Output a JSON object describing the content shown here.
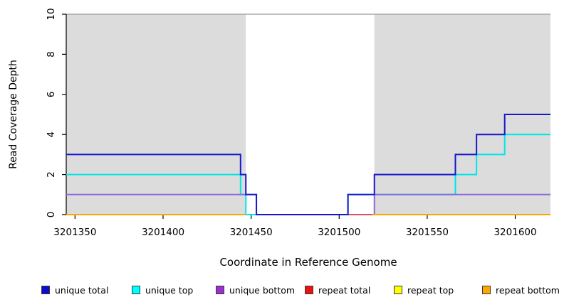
{
  "chart_data": {
    "type": "line",
    "subtype": "step-coverage",
    "title": "",
    "xlabel": "Coordinate in Reference Genome",
    "ylabel": "Read Coverage Depth",
    "xlim": [
      3201345,
      3201620
    ],
    "ylim": [
      0,
      10
    ],
    "x_ticks": [
      3201350,
      3201400,
      3201450,
      3201500,
      3201550,
      3201600
    ],
    "y_ticks": [
      0,
      2,
      4,
      6,
      8,
      10
    ],
    "grid": false,
    "legend_position": "bottom",
    "plot_bg": "#ffffff",
    "top_border_color": "#aaaaaa",
    "axis_color": "#000000",
    "shaded_regions": [
      {
        "x0": 3201345,
        "x1": 3201447,
        "color": "#dcdcdc",
        "meaning": "repeat-region-shading"
      },
      {
        "x0": 3201520,
        "x1": 3201620,
        "color": "#dcdcdc",
        "meaning": "repeat-region-shading"
      }
    ],
    "series": [
      {
        "name": "unique total",
        "color": "#1717cd",
        "legend_color": "#0d0dcd",
        "segments": [
          [
            3201345,
            3201444,
            3
          ],
          [
            3201444,
            3201447,
            2
          ],
          [
            3201447,
            3201453,
            1
          ],
          [
            3201453,
            3201505,
            0
          ],
          [
            3201505,
            3201520,
            1
          ],
          [
            3201520,
            3201566,
            2
          ],
          [
            3201566,
            3201578,
            3
          ],
          [
            3201578,
            3201594,
            4
          ],
          [
            3201594,
            3201620,
            5
          ]
        ]
      },
      {
        "name": "unique top",
        "color": "#00e6e6",
        "legend_color": "#00ffff",
        "segments": [
          [
            3201345,
            3201444,
            2
          ],
          [
            3201444,
            3201447,
            1
          ],
          [
            3201447,
            3201505,
            0
          ],
          [
            3201505,
            3201566,
            1
          ],
          [
            3201566,
            3201578,
            2
          ],
          [
            3201578,
            3201594,
            3
          ],
          [
            3201594,
            3201620,
            4
          ]
        ]
      },
      {
        "name": "unique bottom",
        "color": "#8a68dc",
        "legend_color": "#9932cc",
        "segments": [
          [
            3201345,
            3201453,
            1
          ],
          [
            3201453,
            3201520,
            0
          ],
          [
            3201520,
            3201620,
            1
          ]
        ]
      },
      {
        "name": "repeat total",
        "color": "#dc4f6e",
        "legend_color": "#ee1111",
        "segments": [
          [
            3201453,
            3201519,
            0
          ]
        ]
      },
      {
        "name": "repeat top",
        "color": "#ffff00",
        "legend_color": "#ffff00",
        "segments": [
          [
            3201345,
            3201620,
            0
          ]
        ]
      },
      {
        "name": "repeat bottom",
        "color": "#ffa500",
        "legend_color": "#ffa500",
        "segments": [
          [
            3201345,
            3201447,
            0
          ],
          [
            3201519,
            3201620,
            0
          ]
        ]
      }
    ],
    "draw_order": [
      "repeat top",
      "unique top",
      "unique bottom",
      "repeat total",
      "repeat bottom",
      "unique total"
    ]
  }
}
